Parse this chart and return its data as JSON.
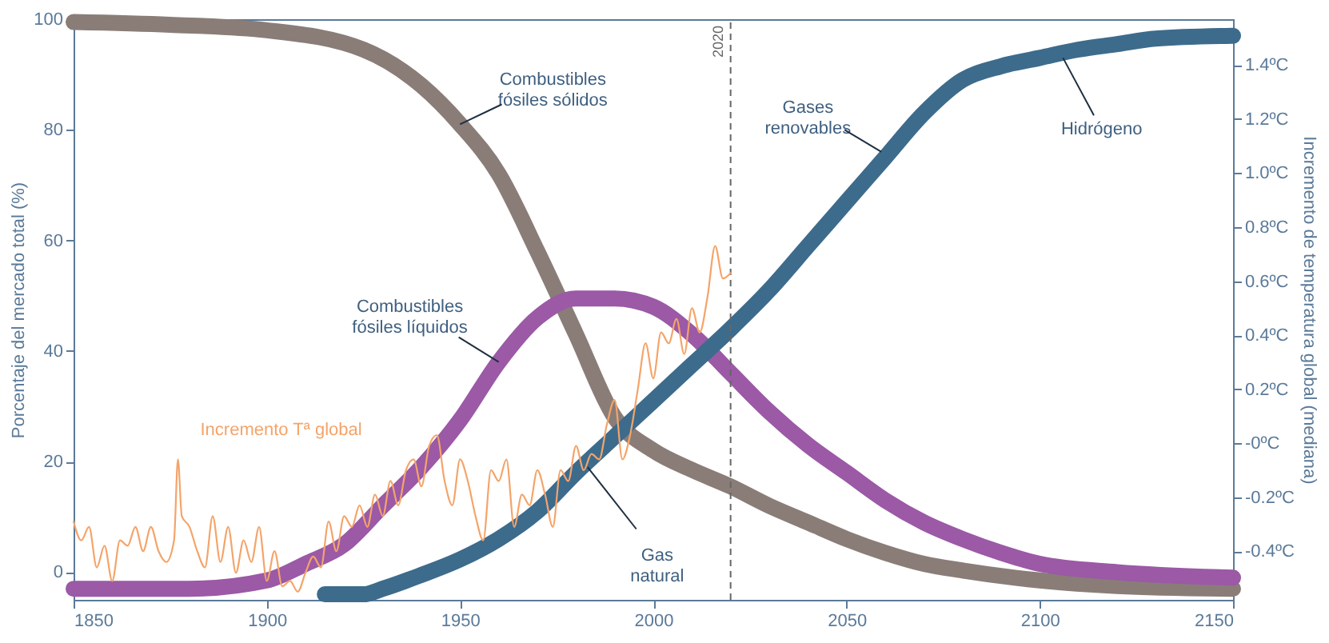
{
  "chart_data": {
    "type": "line",
    "xlabel": null,
    "ylabel": "Porcentaje del mercado total (%)",
    "y2label": "Incremento de temperatura global (mediana)",
    "xlim": [
      1850,
      2150
    ],
    "xticks": [
      1850,
      1900,
      1950,
      2000,
      2050,
      2100,
      2150
    ],
    "ylim": [
      -5,
      100
    ],
    "yticks": [
      0,
      20,
      40,
      60,
      80,
      100
    ],
    "y2lim": [
      -0.58,
      1.57
    ],
    "y2ticks": [
      {
        "value": -0.4,
        "label": "-0.4ºC"
      },
      {
        "value": -0.2,
        "label": "-0.2ºC"
      },
      {
        "value": 0,
        "label": "-0ºC"
      },
      {
        "value": 0.2,
        "label": "0.2ºC"
      },
      {
        "value": 0.4,
        "label": "0.4ºC"
      },
      {
        "value": 0.6,
        "label": "0.6ºC"
      },
      {
        "value": 0.8,
        "label": "0.8ºC"
      },
      {
        "value": 1.0,
        "label": "1.0ºC"
      },
      {
        "value": 1.2,
        "label": "1.2ºC"
      },
      {
        "value": 1.4,
        "label": "1.4ºC"
      }
    ],
    "grid": false,
    "line_style": "solid",
    "marker": "none",
    "series": [
      {
        "name": "Incremento Tª global",
        "color": "#f4a46a",
        "axis": "y2",
        "x": [
          1850,
          1852,
          1854,
          1856,
          1858,
          1860,
          1862,
          1864,
          1866,
          1868,
          1870,
          1872,
          1874,
          1876,
          1877,
          1878,
          1880,
          1882,
          1884,
          1886,
          1888,
          1890,
          1892,
          1894,
          1896,
          1898,
          1900,
          1902,
          1904,
          1906,
          1908,
          1910,
          1912,
          1914,
          1916,
          1918,
          1920,
          1922,
          1924,
          1926,
          1928,
          1930,
          1932,
          1934,
          1936,
          1938,
          1940,
          1942,
          1944,
          1946,
          1948,
          1950,
          1952,
          1954,
          1956,
          1958,
          1960,
          1962,
          1964,
          1966,
          1968,
          1970,
          1972,
          1974,
          1976,
          1978,
          1980,
          1982,
          1984,
          1986,
          1988,
          1990,
          1992,
          1994,
          1996,
          1998,
          2000,
          2002,
          2004,
          2006,
          2008,
          2010,
          2012,
          2014,
          2016,
          2018,
          2020
        ],
        "values": [
          -0.29,
          -0.36,
          -0.31,
          -0.46,
          -0.38,
          -0.51,
          -0.36,
          -0.38,
          -0.31,
          -0.4,
          -0.31,
          -0.4,
          -0.44,
          -0.36,
          -0.06,
          -0.27,
          -0.31,
          -0.4,
          -0.46,
          -0.27,
          -0.44,
          -0.31,
          -0.48,
          -0.36,
          -0.44,
          -0.31,
          -0.51,
          -0.4,
          -0.53,
          -0.51,
          -0.55,
          -0.48,
          -0.42,
          -0.46,
          -0.29,
          -0.4,
          -0.27,
          -0.31,
          -0.23,
          -0.31,
          -0.19,
          -0.27,
          -0.14,
          -0.23,
          -0.1,
          -0.06,
          -0.16,
          -0.01,
          0.03,
          -0.14,
          -0.23,
          -0.06,
          -0.14,
          -0.27,
          -0.36,
          -0.1,
          -0.14,
          -0.06,
          -0.31,
          -0.19,
          -0.23,
          -0.1,
          -0.19,
          -0.31,
          -0.1,
          -0.14,
          -0.01,
          -0.1,
          -0.04,
          -0.06,
          0.07,
          0.16,
          -0.06,
          0.03,
          0.2,
          0.37,
          0.24,
          0.41,
          0.37,
          0.46,
          0.33,
          0.5,
          0.41,
          0.54,
          0.73,
          0.61,
          0.63
        ]
      },
      {
        "color": "#8a7d78",
        "x": [
          1850,
          1875,
          1900,
          1925,
          1940,
          1950,
          1960,
          1970,
          1980,
          1990,
          2000,
          2010,
          2020,
          2030,
          2040,
          2050,
          2060,
          2070,
          2080,
          2100,
          2120,
          2150
        ],
        "values": [
          99.5,
          99,
          98,
          94.5,
          88,
          81,
          72,
          58,
          43,
          28,
          22,
          18.5,
          15.5,
          12,
          9,
          6,
          3.5,
          1.5,
          0.3,
          -1.5,
          -2.5,
          -3
        ]
      },
      {
        "color": "#9b59a6",
        "x": [
          1850,
          1880,
          1900,
          1910,
          1920,
          1930,
          1940,
          1950,
          1960,
          1970,
          1980,
          1990,
          2000,
          2010,
          2020,
          2030,
          2040,
          2050,
          2060,
          2070,
          2080,
          2090,
          2100,
          2120,
          2150
        ],
        "values": [
          -3,
          -3,
          -1.5,
          1.5,
          5,
          12,
          19,
          27.5,
          38,
          46,
          49.5,
          49.5,
          48,
          43,
          36,
          29,
          23,
          18,
          13,
          9,
          6,
          3.5,
          1.5,
          0,
          -1
        ]
      },
      {
        "color": "#3d6b8c",
        "x": [
          1915,
          1925,
          1930,
          1940,
          1950,
          1960,
          1970,
          1980,
          1990,
          2000,
          2010,
          2020,
          2030,
          2040,
          2050,
          2060,
          2070,
          2080,
          2090,
          2100,
          2110,
          2120,
          2130,
          2150
        ],
        "values": [
          -4,
          -4,
          -3,
          -0.5,
          2.3,
          6,
          11,
          18,
          24.5,
          31,
          37.5,
          44,
          51,
          59,
          67,
          75,
          83,
          89,
          91.5,
          93,
          94.5,
          95.5,
          96.5,
          97
        ]
      }
    ],
    "ref_lines": [
      {
        "axis": "x",
        "value": 2020,
        "label": "2020",
        "line_style": "dashed",
        "color": "#666666"
      }
    ],
    "annotations": [
      {
        "text": "Combustibles\nfósiles sólidos",
        "x": 1950,
        "y": 81
      },
      {
        "text": "Combustibles\nfósiles líquidos",
        "x": 1960,
        "y": 38
      },
      {
        "text": "Gas\nnatural",
        "x": 1983,
        "y": 19
      },
      {
        "text": "Gases\nrenovables",
        "x": 2059,
        "y": 76
      },
      {
        "text": "Hidrógeno",
        "x": 2106,
        "y": 93
      }
    ]
  }
}
